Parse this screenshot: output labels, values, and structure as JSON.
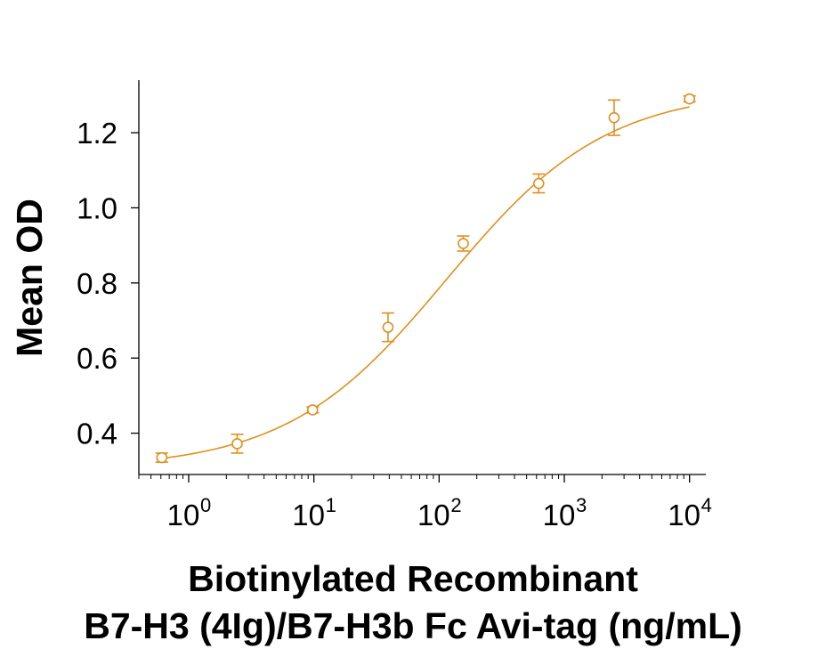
{
  "chart_data": {
    "type": "scatter",
    "xlabel_line1": "Biotinylated Recombinant",
    "xlabel_line2": "B7-H3 (4Ig)/B7-H3b Fc Avi-tag (ng/mL)",
    "ylabel": "Mean OD",
    "x_scale": "log10",
    "xlim": [
      0.4,
      13500
    ],
    "ylim": [
      0.29,
      1.34
    ],
    "x_ticks": [
      1,
      10,
      100,
      1000,
      10000
    ],
    "x_tick_base": "10",
    "x_tick_exponents": [
      "0",
      "1",
      "2",
      "3",
      "4"
    ],
    "y_ticks": [
      0.4,
      0.6,
      0.8,
      1.0,
      1.2
    ],
    "y_tick_labels": [
      "0.4",
      "0.6",
      "0.8",
      "1.0",
      "1.2"
    ],
    "grid": false,
    "color": "#E08F1E",
    "series": [
      {
        "x": [
          0.61,
          2.44,
          9.77,
          39.1,
          156,
          625,
          2500,
          10000
        ],
        "y": [
          0.335,
          0.372,
          0.462,
          0.682,
          0.905,
          1.065,
          1.24,
          1.29
        ],
        "yerr": [
          0.012,
          0.025,
          0.008,
          0.038,
          0.02,
          0.025,
          0.047,
          0.008
        ]
      }
    ],
    "fit": {
      "model": "4PL",
      "bottom": 0.305,
      "top": 1.315,
      "ec50": 115,
      "hill": 0.68
    }
  }
}
